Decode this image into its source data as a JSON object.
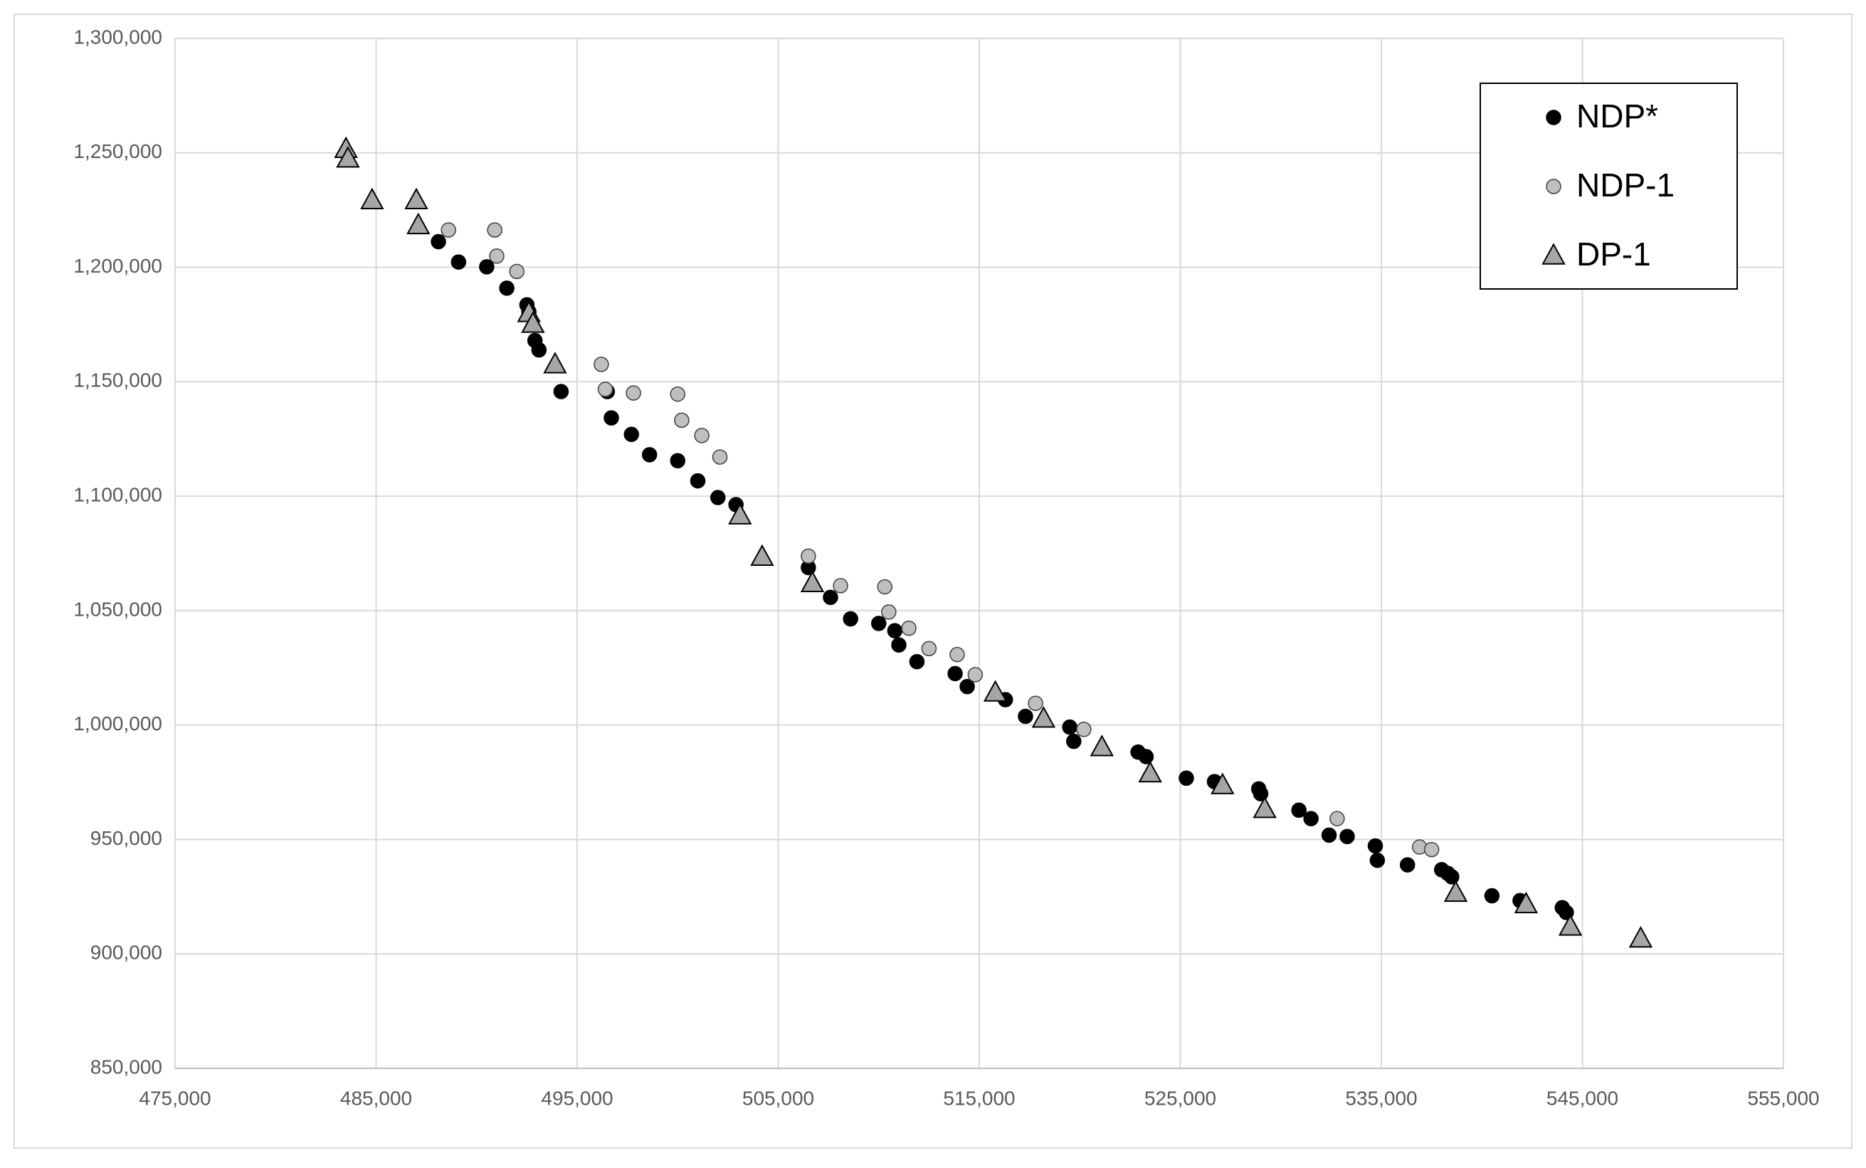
{
  "chart_data": {
    "type": "scatter",
    "xlim": [
      475000,
      555000
    ],
    "xticks": [
      {
        "value": 475000,
        "label": "475,000"
      },
      {
        "value": 485000,
        "label": "485,000"
      },
      {
        "value": 495000,
        "label": "495,000"
      },
      {
        "value": 505000,
        "label": "505,000"
      },
      {
        "value": 515000,
        "label": "515,000"
      },
      {
        "value": 525000,
        "label": "525,000"
      },
      {
        "value": 535000,
        "label": "535,000"
      },
      {
        "value": 545000,
        "label": "545,000"
      },
      {
        "value": 555000,
        "label": "555,000"
      }
    ],
    "ylim": [
      850000,
      1300000
    ],
    "yticks": [
      {
        "value": 850000,
        "label": "850,000"
      },
      {
        "value": 900000,
        "label": "900,000"
      },
      {
        "value": 950000,
        "label": "950,000"
      },
      {
        "value": 1000000,
        "label": "1,000,000"
      },
      {
        "value": 1050000,
        "label": "1,050,000"
      },
      {
        "value": 1100000,
        "label": "1,100,000"
      },
      {
        "value": 1150000,
        "label": "1,150,000"
      },
      {
        "value": 1200000,
        "label": "1,200,000"
      },
      {
        "value": 1250000,
        "label": "1,250,000"
      },
      {
        "value": 1300000,
        "label": "1,300,000"
      }
    ],
    "grid": true,
    "legend": "upper right",
    "series": [
      {
        "name": "NDP*",
        "color": "#000000",
        "marker": "circle",
        "x": [
          488100,
          489100,
          490500,
          491500,
          492500,
          492600,
          492900,
          493100,
          494200,
          496500,
          496700,
          497700,
          498600,
          500000,
          501000,
          502000,
          502900,
          506500,
          507600,
          508600,
          510000,
          510800,
          511000,
          511900,
          513800,
          514400,
          516300,
          517300,
          519500,
          519700,
          522900,
          523300,
          525300,
          526700,
          528900,
          529000,
          530900,
          531500,
          532400,
          533300,
          534700,
          534800,
          536300,
          538000,
          538300,
          538500,
          540500,
          541900,
          544000,
          544200
        ],
        "values": [
          1211200,
          1202300,
          1200200,
          1190900,
          1183600,
          1180500,
          1168000,
          1163900,
          1145700,
          1145700,
          1134200,
          1127000,
          1118100,
          1115500,
          1106700,
          1099400,
          1096300,
          1068800,
          1055800,
          1046400,
          1044400,
          1041200,
          1035000,
          1027700,
          1022500,
          1016800,
          1011100,
          1003800,
          999100,
          992900,
          988200,
          986200,
          976800,
          975300,
          972100,
          970000,
          962800,
          959100,
          951900,
          951300,
          947200,
          940900,
          938900,
          936800,
          935200,
          933700,
          925400,
          923300,
          920200,
          918100
        ]
      },
      {
        "name": "NDP-1",
        "color": "#bfbfbf",
        "marker": "circle",
        "x": [
          488600,
          490900,
          491000,
          492000,
          496200,
          496400,
          497800,
          500000,
          500200,
          501200,
          502100,
          506500,
          508100,
          510300,
          510500,
          511500,
          512500,
          513900,
          514800,
          517800,
          520200,
          532800,
          536900,
          537500
        ],
        "values": [
          1216300,
          1216300,
          1204900,
          1198200,
          1157600,
          1146700,
          1145100,
          1144600,
          1133200,
          1126500,
          1117100,
          1073800,
          1060900,
          1060400,
          1049400,
          1042300,
          1033400,
          1030800,
          1022000,
          1009500,
          998100,
          959100,
          946700,
          945600
        ]
      },
      {
        "name": "DP-1",
        "color": "#a6a6a6",
        "marker": "triangle",
        "x": [
          483500,
          483600,
          484800,
          487000,
          487100,
          492600,
          492800,
          493900,
          503100,
          504200,
          506700,
          515800,
          518200,
          521100,
          523500,
          527100,
          529200,
          538700,
          542200,
          544400,
          547900
        ],
        "values": [
          1251700,
          1247500,
          1229300,
          1229300,
          1218400,
          1180000,
          1175300,
          1157600,
          1091600,
          1073500,
          1062000,
          1014200,
          1002800,
          990300,
          978900,
          973700,
          963300,
          926700,
          921700,
          911900,
          906700
        ]
      }
    ]
  }
}
